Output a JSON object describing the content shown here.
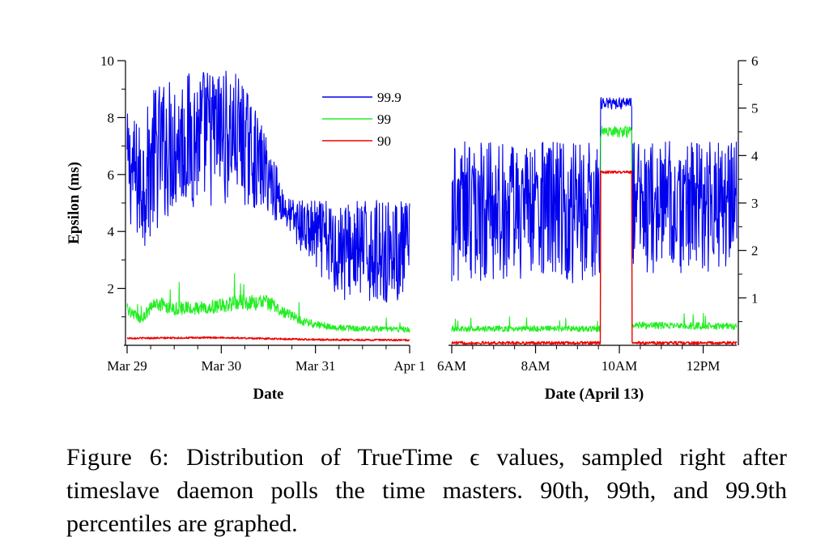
{
  "chart_data": [
    {
      "type": "line",
      "id": "left",
      "xlabel": "Date",
      "ylabel": "Epsilon (ms)",
      "xlim": [
        0,
        3
      ],
      "ylim": [
        0,
        10
      ],
      "x_ticks": [
        {
          "value": 0,
          "label": "Mar 29"
        },
        {
          "value": 1,
          "label": "Mar 30"
        },
        {
          "value": 2,
          "label": "Mar 31"
        },
        {
          "value": 3,
          "label": "Apr 1"
        }
      ],
      "y_ticks": [
        2,
        4,
        6,
        8,
        10
      ],
      "legend": {
        "position": "top-center",
        "entries": [
          {
            "name": "99.9",
            "color": "#0000ee"
          },
          {
            "name": "99",
            "color": "#22ee22"
          },
          {
            "name": "90",
            "color": "#ee0000"
          }
        ]
      },
      "series": [
        {
          "name": "99.9",
          "color": "#0000ee",
          "x": [
            0,
            0.15,
            0.3,
            0.5,
            0.8,
            1.0,
            1.2,
            1.5,
            1.7,
            1.9,
            2.2,
            2.5,
            2.8,
            3.0
          ],
          "y_low": [
            4.4,
            3.2,
            4.0,
            4.6,
            4.7,
            4.9,
            4.9,
            4.6,
            4.0,
            3.0,
            1.6,
            1.4,
            1.5,
            1.5
          ],
          "y_high": [
            8.2,
            7.8,
            9.2,
            9.5,
            9.8,
            9.8,
            9.5,
            7.2,
            5.2,
            5.1,
            5.1,
            5.1,
            5.1,
            5.1
          ]
        },
        {
          "name": "99",
          "color": "#22ee22",
          "x": [
            0,
            0.15,
            0.3,
            0.5,
            0.8,
            1.0,
            1.2,
            1.5,
            1.7,
            1.9,
            2.2,
            2.5,
            2.8,
            3.0
          ],
          "y": [
            1.3,
            0.9,
            1.5,
            1.3,
            1.3,
            1.4,
            1.5,
            1.5,
            1.1,
            0.8,
            0.62,
            0.58,
            0.58,
            0.55
          ]
        },
        {
          "name": "90",
          "color": "#ee0000",
          "x": [
            0,
            1.0,
            2.0,
            3.0
          ],
          "y": [
            0.25,
            0.27,
            0.2,
            0.18
          ]
        }
      ]
    },
    {
      "type": "line",
      "id": "right",
      "xlabel": "Date (April 13)",
      "ylabel": "",
      "xlim": [
        6,
        12.8
      ],
      "ylim": [
        0,
        6
      ],
      "x_ticks": [
        {
          "value": 6,
          "label": "6AM"
        },
        {
          "value": 8,
          "label": "8AM"
        },
        {
          "value": 10,
          "label": "10AM"
        },
        {
          "value": 12,
          "label": "12PM"
        }
      ],
      "y_ticks": [
        1,
        2,
        3,
        4,
        5,
        6
      ],
      "y_axis_side": "right",
      "spike_window": [
        9.55,
        10.3
      ],
      "series": [
        {
          "name": "99.9",
          "color": "#0000ee",
          "x": [
            6,
            7,
            8,
            9,
            9.5,
            10.3,
            11,
            12,
            12.8
          ],
          "y_low": [
            1.3,
            1.3,
            1.3,
            1.3,
            1.3,
            1.4,
            1.4,
            1.3,
            1.8
          ],
          "y_high": [
            4.3,
            4.3,
            4.3,
            4.3,
            4.3,
            4.3,
            4.3,
            4.3,
            4.3
          ],
          "spike": 5.1
        },
        {
          "name": "99",
          "color": "#22ee22",
          "x": [
            6,
            8,
            9.5,
            10.3,
            12.8
          ],
          "y": [
            0.35,
            0.35,
            0.35,
            0.42,
            0.4
          ],
          "spike": 4.5
        },
        {
          "name": "90",
          "color": "#ee0000",
          "x": [
            6,
            9.5,
            10.3,
            12.8
          ],
          "y": [
            0.05,
            0.05,
            0.05,
            0.05
          ],
          "spike": 3.65
        }
      ]
    }
  ],
  "caption": {
    "label": "Figure 6:",
    "text": "Distribution of TrueTime ϵ values, sampled right after timeslave daemon polls the time masters. 90th, 99th, and 99.9th percentiles are graphed."
  }
}
